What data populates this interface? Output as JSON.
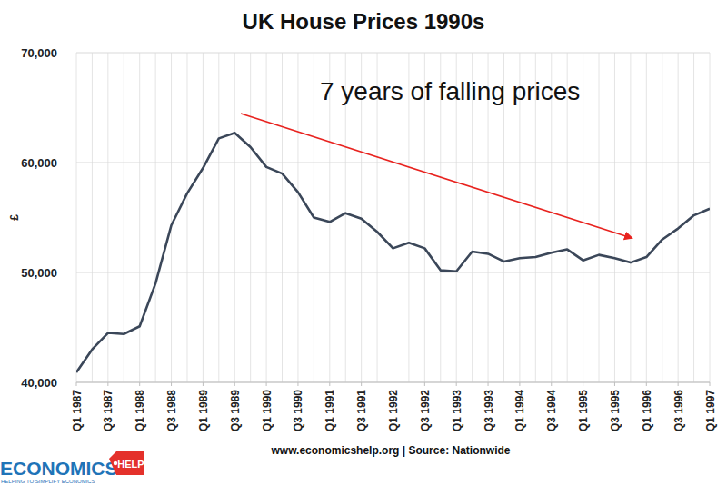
{
  "chart_data": {
    "type": "line",
    "title": "UK House Prices 1990s",
    "y_label": "£",
    "annotation": "7 years of falling prices",
    "source": "www.economicshelp.org | Source: Nationwide",
    "categories": [
      "Q1 1987",
      null,
      "Q3 1987",
      null,
      "Q1 1988",
      null,
      "Q3 1988",
      null,
      "Q1 1989",
      null,
      "Q3 1989",
      null,
      "Q1 1990",
      null,
      "Q3 1990",
      null,
      "Q1 1991",
      null,
      "Q3 1991",
      null,
      "Q1 1992",
      null,
      "Q3 1992",
      null,
      "Q1 1993",
      null,
      "Q3 1993",
      null,
      "Q1 1994",
      null,
      "Q3 1994",
      null,
      "Q1 1995",
      null,
      "Q3 1995",
      null,
      "Q1 1996",
      null,
      "Q3 1996",
      null,
      "Q1 1997"
    ],
    "values": [
      40900,
      43000,
      44500,
      44400,
      45100,
      49000,
      54300,
      57200,
      59500,
      62200,
      62700,
      61400,
      59600,
      59000,
      57300,
      55000,
      54600,
      55400,
      54900,
      53700,
      52200,
      52700,
      52200,
      50200,
      50100,
      51900,
      51700,
      51000,
      51300,
      51400,
      51800,
      52100,
      51100,
      51600,
      51300,
      50900,
      51400,
      53000,
      54000,
      55200,
      55800
    ],
    "color": "#3b4759",
    "ylim": [
      40000,
      70000
    ],
    "yticks": [
      {
        "value": 40000,
        "label": "40,000"
      },
      {
        "value": 50000,
        "label": "50,000"
      },
      {
        "value": 60000,
        "label": "60,000"
      },
      {
        "value": 70000,
        "label": "70,000"
      }
    ],
    "grid": true
  },
  "logo": {
    "name": "ECONOMICS",
    "badge": "HELP",
    "tagline": "HELPING TO SIMPLIFY ECONOMICS"
  }
}
